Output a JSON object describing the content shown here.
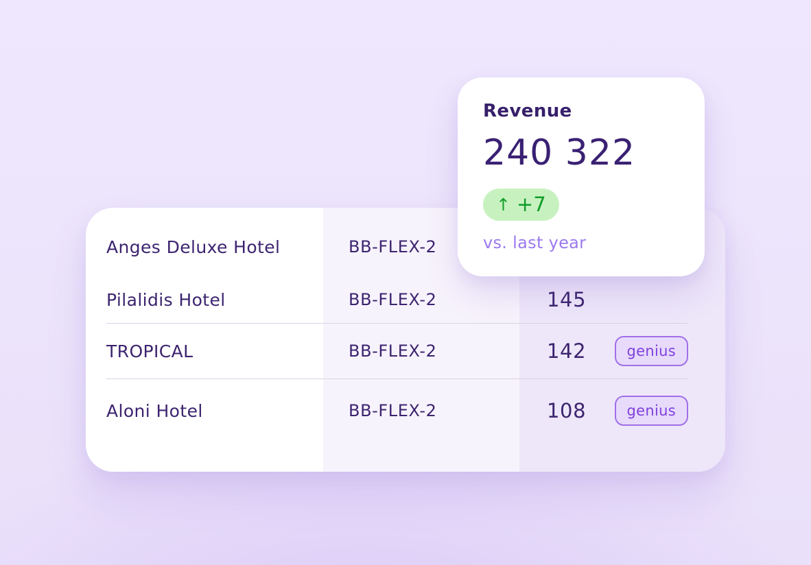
{
  "page": {
    "background_color": "#ece4fb"
  },
  "revenue_card": {
    "title": "Revenue",
    "value": "240 322",
    "delta_badge": {
      "icon": "arrow-up-icon",
      "glyph": "↑",
      "label": "+7",
      "background": "#c7f2c0",
      "text_color": "#16a12b"
    },
    "comparison_label": "vs. last year",
    "comparison_color": "#9b79ee"
  },
  "hotels_table": {
    "columns": [
      "hotel_name",
      "rate_plan",
      "value",
      "badge"
    ],
    "rows": [
      {
        "hotel": "Anges Deluxe Hotel",
        "plan": "BB-FLEX-2",
        "value": "",
        "badge": ""
      },
      {
        "hotel": "Pilalidis Hotel",
        "plan": "BB-FLEX-2",
        "value": "145",
        "badge": ""
      },
      {
        "hotel": "TROPICAL",
        "plan": "BB-FLEX-2",
        "value": "142",
        "badge": "genius"
      },
      {
        "hotel": "Aloni Hotel",
        "plan": "BB-FLEX-2",
        "value": "108",
        "badge": "genius"
      }
    ],
    "text_color": "#3c246f",
    "badge_border_color": "#a06fe8",
    "badge_background": "#e7dafb",
    "badge_text_color": "#7f3fdd",
    "column_backgrounds": [
      "#ffffff",
      "#f7f3fc",
      "#eee7f9"
    ]
  }
}
